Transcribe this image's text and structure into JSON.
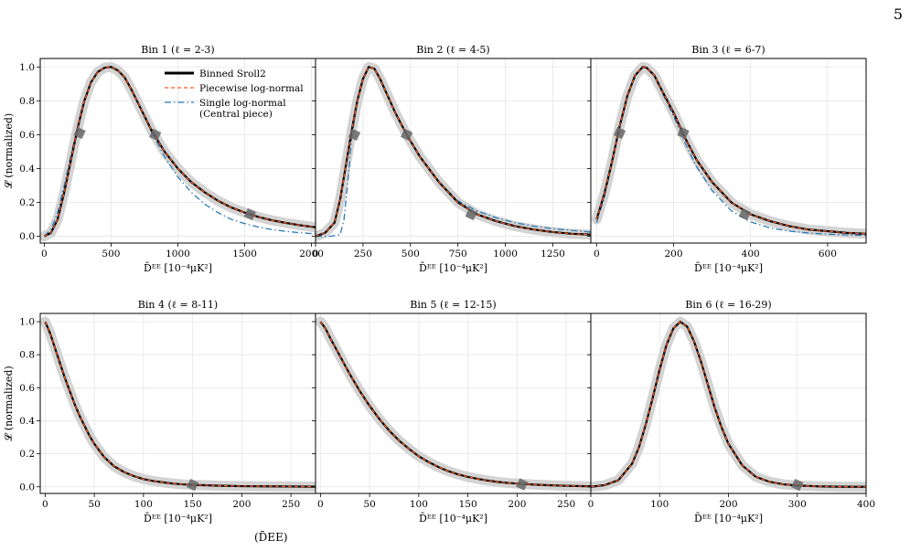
{
  "page": {
    "number": "5",
    "caption_fragment": "(D̄EE)"
  },
  "colors": {
    "sroll": "#000000",
    "piecewise": "#ff5a1f",
    "single": "#2a7ab8",
    "band": "#d3d3d3",
    "marker": "#666666",
    "grid": "#e6e6e6"
  },
  "legend": {
    "location": "top-right of Bin 1",
    "entries": [
      {
        "label": "Binned Sroll2",
        "style": "solid",
        "color": "#000000"
      },
      {
        "label": "Piecewise log-normal",
        "style": "dashed",
        "color": "#ff5a1f"
      },
      {
        "label": "Single log-normal",
        "label_line2": "(Central piece)",
        "style": "dashdot",
        "color": "#2a7ab8"
      }
    ]
  },
  "chart_data": [
    {
      "type": "line",
      "title": "Bin 1 (ℓ = 2-3)",
      "xlabel": "D̄ᴱᴱ [10⁻⁴μK²]",
      "ylabel": "𝓛 (normalized)",
      "xlim": [
        -30,
        2030
      ],
      "ylim": [
        -0.04,
        1.05
      ],
      "xticks": [
        0,
        500,
        1000,
        1500,
        2000
      ],
      "yticks": [
        0.0,
        0.2,
        0.4,
        0.6,
        0.8,
        1.0
      ],
      "grid": true,
      "show_legend": true,
      "series": [
        {
          "name": "Binned Sroll2",
          "x": [
            0,
            50,
            100,
            150,
            200,
            250,
            300,
            350,
            400,
            450,
            500,
            550,
            600,
            650,
            700,
            800,
            900,
            1000,
            1100,
            1200,
            1300,
            1400,
            1500,
            1600,
            1700,
            1800,
            1900,
            2000,
            2030
          ],
          "y": [
            0.0,
            0.02,
            0.1,
            0.26,
            0.45,
            0.64,
            0.8,
            0.91,
            0.97,
            0.995,
            1.0,
            0.98,
            0.94,
            0.87,
            0.79,
            0.63,
            0.5,
            0.4,
            0.32,
            0.26,
            0.21,
            0.17,
            0.14,
            0.115,
            0.095,
            0.08,
            0.067,
            0.056,
            0.053
          ]
        },
        {
          "name": "Piecewise log-normal",
          "x": [
            0,
            50,
            100,
            150,
            200,
            250,
            300,
            350,
            400,
            450,
            500,
            550,
            600,
            650,
            700,
            800,
            900,
            1000,
            1100,
            1200,
            1300,
            1400,
            1500,
            1600,
            1700,
            1800,
            1900,
            2000,
            2030
          ],
          "y": [
            0.0,
            0.02,
            0.1,
            0.26,
            0.45,
            0.64,
            0.8,
            0.91,
            0.97,
            0.995,
            1.0,
            0.98,
            0.94,
            0.87,
            0.79,
            0.63,
            0.5,
            0.4,
            0.32,
            0.26,
            0.21,
            0.17,
            0.14,
            0.115,
            0.095,
            0.08,
            0.067,
            0.056,
            0.053
          ]
        },
        {
          "name": "Single log-normal",
          "x": [
            0,
            50,
            100,
            150,
            200,
            250,
            300,
            350,
            400,
            450,
            500,
            550,
            600,
            650,
            700,
            800,
            900,
            1000,
            1100,
            1200,
            1300,
            1400,
            1500,
            1600,
            1700,
            1800,
            1900,
            2000,
            2030
          ],
          "y": [
            0.0,
            0.04,
            0.14,
            0.3,
            0.48,
            0.65,
            0.8,
            0.91,
            0.97,
            0.995,
            1.0,
            0.98,
            0.94,
            0.87,
            0.79,
            0.62,
            0.47,
            0.35,
            0.26,
            0.19,
            0.14,
            0.1,
            0.075,
            0.055,
            0.04,
            0.03,
            0.022,
            0.016,
            0.015
          ]
        }
      ],
      "markers": [
        {
          "x": 265,
          "y": 0.61
        },
        {
          "x": 830,
          "y": 0.6
        },
        {
          "x": 1540,
          "y": 0.13
        }
      ]
    },
    {
      "type": "line",
      "title": "Bin 2 (ℓ = 4-5)",
      "xlabel": "D̄ᴱᴱ [10⁻⁴μK²]",
      "xlim": [
        0,
        1450
      ],
      "ylim": [
        -0.04,
        1.05
      ],
      "xticks": [
        0,
        250,
        500,
        750,
        1000,
        1250
      ],
      "yticks": [
        0.0,
        0.2,
        0.4,
        0.6,
        0.8,
        1.0
      ],
      "grid": true,
      "show_legend": false,
      "series": [
        {
          "name": "Binned Sroll2",
          "x": [
            0,
            50,
            100,
            130,
            160,
            190,
            220,
            250,
            280,
            310,
            340,
            380,
            420,
            480,
            550,
            650,
            750,
            850,
            950,
            1050,
            1150,
            1250,
            1350,
            1450
          ],
          "y": [
            0.0,
            0.02,
            0.08,
            0.22,
            0.42,
            0.62,
            0.8,
            0.93,
            1.0,
            0.99,
            0.93,
            0.83,
            0.73,
            0.6,
            0.47,
            0.32,
            0.2,
            0.13,
            0.09,
            0.06,
            0.04,
            0.025,
            0.015,
            0.01
          ]
        },
        {
          "name": "Piecewise log-normal",
          "x": [
            0,
            50,
            100,
            130,
            160,
            190,
            220,
            250,
            280,
            310,
            340,
            380,
            420,
            480,
            550,
            650,
            750,
            850,
            950,
            1050,
            1150,
            1250,
            1350,
            1450
          ],
          "y": [
            0.0,
            0.02,
            0.08,
            0.22,
            0.42,
            0.62,
            0.8,
            0.93,
            1.0,
            0.99,
            0.93,
            0.83,
            0.73,
            0.6,
            0.47,
            0.32,
            0.2,
            0.13,
            0.09,
            0.06,
            0.04,
            0.025,
            0.015,
            0.01
          ]
        },
        {
          "name": "Single log-normal",
          "x": [
            0,
            80,
            130,
            150,
            170,
            190,
            220,
            250,
            280,
            310,
            340,
            380,
            420,
            480,
            550,
            650,
            750,
            850,
            950,
            1050,
            1150,
            1250,
            1350,
            1450
          ],
          "y": [
            0.0,
            0.0,
            0.01,
            0.1,
            0.32,
            0.58,
            0.8,
            0.93,
            1.0,
            0.99,
            0.93,
            0.83,
            0.73,
            0.6,
            0.47,
            0.32,
            0.21,
            0.15,
            0.11,
            0.08,
            0.06,
            0.045,
            0.035,
            0.025
          ]
        }
      ],
      "markers": [
        {
          "x": 205,
          "y": 0.6
        },
        {
          "x": 480,
          "y": 0.6
        },
        {
          "x": 820,
          "y": 0.13
        }
      ]
    },
    {
      "type": "line",
      "title": "Bin 3 (ℓ = 6-7)",
      "xlabel": "D̄ᴱᴱ [10⁻⁴μK²]",
      "xlim": [
        -15,
        700
      ],
      "ylim": [
        -0.04,
        1.05
      ],
      "xticks": [
        0,
        200,
        400,
        600
      ],
      "yticks": [
        0.0,
        0.2,
        0.4,
        0.6,
        0.8,
        1.0
      ],
      "grid": true,
      "show_legend": false,
      "series": [
        {
          "name": "Binned Sroll2",
          "x": [
            0,
            20,
            40,
            60,
            80,
            100,
            120,
            130,
            150,
            170,
            200,
            230,
            260,
            300,
            350,
            400,
            450,
            500,
            550,
            600,
            650,
            700
          ],
          "y": [
            0.1,
            0.25,
            0.44,
            0.65,
            0.83,
            0.95,
            1.0,
            0.995,
            0.95,
            0.86,
            0.73,
            0.58,
            0.45,
            0.32,
            0.2,
            0.13,
            0.09,
            0.06,
            0.04,
            0.03,
            0.02,
            0.015
          ]
        },
        {
          "name": "Piecewise log-normal",
          "x": [
            0,
            20,
            40,
            60,
            80,
            100,
            120,
            130,
            150,
            170,
            200,
            230,
            260,
            300,
            350,
            400,
            450,
            500,
            550,
            600,
            650,
            700
          ],
          "y": [
            0.1,
            0.25,
            0.44,
            0.65,
            0.83,
            0.95,
            1.0,
            0.995,
            0.95,
            0.86,
            0.73,
            0.58,
            0.45,
            0.32,
            0.2,
            0.13,
            0.09,
            0.06,
            0.04,
            0.03,
            0.02,
            0.015
          ]
        },
        {
          "name": "Single log-normal",
          "x": [
            0,
            20,
            40,
            60,
            80,
            100,
            120,
            130,
            150,
            170,
            200,
            230,
            260,
            300,
            350,
            400,
            450,
            500,
            550,
            600,
            650,
            700
          ],
          "y": [
            0.08,
            0.23,
            0.43,
            0.65,
            0.83,
            0.95,
            1.0,
            0.995,
            0.95,
            0.85,
            0.71,
            0.55,
            0.41,
            0.27,
            0.15,
            0.085,
            0.05,
            0.03,
            0.02,
            0.012,
            0.008,
            0.005
          ]
        }
      ],
      "markers": [
        {
          "x": 60,
          "y": 0.61
        },
        {
          "x": 225,
          "y": 0.61
        },
        {
          "x": 385,
          "y": 0.13
        }
      ]
    },
    {
      "type": "line",
      "title": "Bin 4 (ℓ = 8-11)",
      "xlabel": "D̄ᴱᴱ [10⁻⁴μK²]",
      "ylabel": "𝓛 (normalized)",
      "xlim": [
        -5,
        275
      ],
      "ylim": [
        -0.04,
        1.05
      ],
      "xticks": [
        0,
        50,
        100,
        150,
        200,
        250
      ],
      "yticks": [
        0.0,
        0.2,
        0.4,
        0.6,
        0.8,
        1.0
      ],
      "grid": true,
      "show_legend": false,
      "series": [
        {
          "name": "Binned Sroll2",
          "x": [
            0,
            5,
            10,
            15,
            20,
            25,
            30,
            35,
            40,
            45,
            50,
            60,
            70,
            80,
            90,
            100,
            110,
            120,
            130,
            140,
            150,
            175,
            200,
            225,
            250,
            275
          ],
          "y": [
            1.0,
            0.93,
            0.84,
            0.75,
            0.66,
            0.58,
            0.5,
            0.43,
            0.37,
            0.31,
            0.26,
            0.18,
            0.125,
            0.09,
            0.065,
            0.047,
            0.035,
            0.027,
            0.02,
            0.015,
            0.012,
            0.007,
            0.004,
            0.003,
            0.002,
            0.001
          ]
        },
        {
          "name": "Piecewise log-normal",
          "x": [
            0,
            5,
            10,
            15,
            20,
            25,
            30,
            35,
            40,
            45,
            50,
            60,
            70,
            80,
            90,
            100,
            110,
            120,
            130,
            140,
            150,
            175,
            200,
            225,
            250,
            275
          ],
          "y": [
            1.0,
            0.93,
            0.84,
            0.75,
            0.66,
            0.58,
            0.5,
            0.43,
            0.37,
            0.31,
            0.26,
            0.18,
            0.125,
            0.09,
            0.065,
            0.047,
            0.035,
            0.027,
            0.02,
            0.015,
            0.012,
            0.007,
            0.004,
            0.003,
            0.002,
            0.001
          ]
        }
      ],
      "markers": [
        {
          "x": 150,
          "y": 0.012
        }
      ]
    },
    {
      "type": "line",
      "title": "Bin 5 (ℓ = 12-15)",
      "xlabel": "D̄ᴱᴱ [10⁻⁴μK²]",
      "xlim": [
        -5,
        275
      ],
      "ylim": [
        -0.04,
        1.05
      ],
      "xticks": [
        0,
        50,
        100,
        150,
        200,
        250
      ],
      "yticks": [
        0.0,
        0.2,
        0.4,
        0.6,
        0.8,
        1.0
      ],
      "grid": true,
      "show_legend": false,
      "series": [
        {
          "name": "Binned Sroll2",
          "x": [
            0,
            5,
            10,
            20,
            30,
            40,
            50,
            60,
            70,
            80,
            90,
            100,
            110,
            120,
            130,
            140,
            150,
            160,
            170,
            180,
            190,
            200,
            210,
            225,
            250,
            275
          ],
          "y": [
            1.0,
            0.96,
            0.9,
            0.79,
            0.68,
            0.58,
            0.49,
            0.41,
            0.34,
            0.28,
            0.23,
            0.185,
            0.15,
            0.12,
            0.095,
            0.075,
            0.06,
            0.048,
            0.038,
            0.03,
            0.024,
            0.02,
            0.016,
            0.011,
            0.006,
            0.003
          ]
        },
        {
          "name": "Piecewise log-normal",
          "x": [
            0,
            5,
            10,
            20,
            30,
            40,
            50,
            60,
            70,
            80,
            90,
            100,
            110,
            120,
            130,
            140,
            150,
            160,
            170,
            180,
            190,
            200,
            210,
            225,
            250,
            275
          ],
          "y": [
            1.0,
            0.96,
            0.9,
            0.79,
            0.68,
            0.58,
            0.49,
            0.41,
            0.34,
            0.28,
            0.23,
            0.185,
            0.15,
            0.12,
            0.095,
            0.075,
            0.06,
            0.048,
            0.038,
            0.03,
            0.024,
            0.02,
            0.016,
            0.011,
            0.006,
            0.003
          ]
        }
      ],
      "markers": [
        {
          "x": 205,
          "y": 0.015
        }
      ]
    },
    {
      "type": "line",
      "title": "Bin 6 (ℓ = 16-29)",
      "xlabel": "D̄ᴱᴱ [10⁻⁴μK²]",
      "xlim": [
        0,
        400
      ],
      "ylim": [
        -0.04,
        1.05
      ],
      "xticks": [
        0,
        100,
        200,
        300,
        400
      ],
      "yticks": [
        0.0,
        0.2,
        0.4,
        0.6,
        0.8,
        1.0
      ],
      "grid": true,
      "show_legend": false,
      "series": [
        {
          "name": "Binned Sroll2",
          "x": [
            0,
            20,
            40,
            60,
            70,
            80,
            90,
            100,
            110,
            120,
            130,
            140,
            150,
            160,
            170,
            180,
            190,
            200,
            220,
            240,
            260,
            280,
            300,
            330,
            360,
            400
          ],
          "y": [
            0.0,
            0.01,
            0.04,
            0.14,
            0.24,
            0.38,
            0.54,
            0.71,
            0.86,
            0.96,
            1.0,
            0.97,
            0.88,
            0.76,
            0.62,
            0.48,
            0.36,
            0.26,
            0.13,
            0.06,
            0.03,
            0.015,
            0.008,
            0.003,
            0.001,
            0.0
          ]
        },
        {
          "name": "Piecewise log-normal",
          "x": [
            0,
            20,
            40,
            60,
            70,
            80,
            90,
            100,
            110,
            120,
            130,
            140,
            150,
            160,
            170,
            180,
            190,
            200,
            220,
            240,
            260,
            280,
            300,
            330,
            360,
            400
          ],
          "y": [
            0.0,
            0.01,
            0.04,
            0.14,
            0.24,
            0.38,
            0.54,
            0.71,
            0.86,
            0.96,
            1.0,
            0.97,
            0.88,
            0.76,
            0.62,
            0.48,
            0.36,
            0.26,
            0.13,
            0.06,
            0.03,
            0.015,
            0.008,
            0.003,
            0.001,
            0.0
          ]
        }
      ],
      "markers": [
        {
          "x": 300,
          "y": 0.012
        }
      ]
    }
  ]
}
